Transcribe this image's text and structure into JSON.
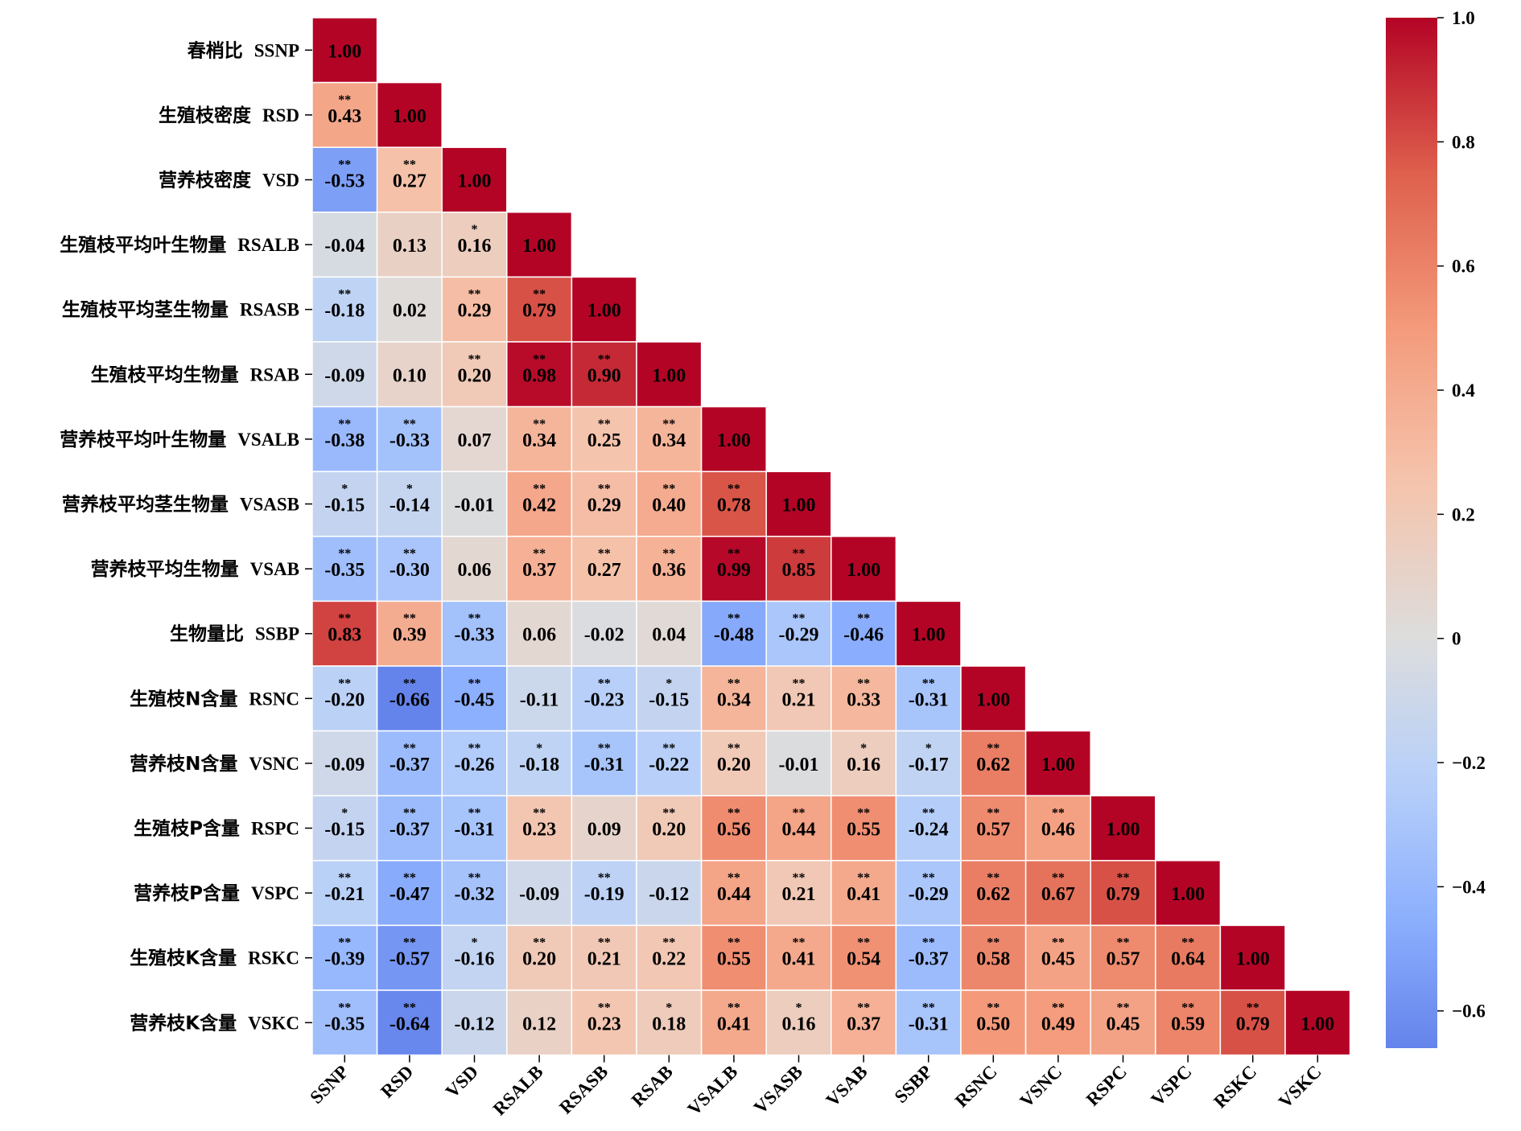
{
  "chart_data": {
    "type": "heatmap",
    "title": "",
    "variables": [
      "SSNP",
      "RSD",
      "VSD",
      "RSALB",
      "RSASB",
      "RSAB",
      "VSALB",
      "VSASB",
      "VSAB",
      "SSBP",
      "RSNC",
      "VSNC",
      "RSPC",
      "VSPC",
      "RSKC",
      "VSKC"
    ],
    "row_labels_cn": [
      "春梢比",
      "生殖枝密度",
      "营养枝密度",
      "生殖枝平均叶生物量",
      "生殖枝平均茎生物量",
      "生殖枝平均生物量",
      "营养枝平均叶生物量",
      "营养枝平均茎生物量",
      "营养枝平均生物量",
      "生物量比",
      "生殖枝N含量",
      "营养枝N含量",
      "生殖枝P含量",
      "营养枝P含量",
      "生殖枝K含量",
      "营养枝K含量"
    ],
    "values": [
      [
        1.0
      ],
      [
        0.43,
        1.0
      ],
      [
        -0.53,
        0.27,
        1.0
      ],
      [
        -0.04,
        0.13,
        0.16,
        1.0
      ],
      [
        -0.18,
        0.02,
        0.29,
        0.79,
        1.0
      ],
      [
        -0.09,
        0.1,
        0.2,
        0.98,
        0.9,
        1.0
      ],
      [
        -0.38,
        -0.33,
        0.07,
        0.34,
        0.25,
        0.34,
        1.0
      ],
      [
        -0.15,
        -0.14,
        -0.01,
        0.42,
        0.29,
        0.4,
        0.78,
        1.0
      ],
      [
        -0.35,
        -0.3,
        0.06,
        0.37,
        0.27,
        0.36,
        0.99,
        0.85,
        1.0
      ],
      [
        0.83,
        0.39,
        -0.33,
        0.06,
        -0.02,
        0.04,
        -0.48,
        -0.29,
        -0.46,
        1.0
      ],
      [
        -0.2,
        -0.66,
        -0.45,
        -0.11,
        -0.23,
        -0.15,
        0.34,
        0.21,
        0.33,
        -0.31,
        1.0
      ],
      [
        -0.09,
        -0.37,
        -0.26,
        -0.18,
        -0.31,
        -0.22,
        0.2,
        -0.01,
        0.16,
        -0.17,
        0.62,
        1.0
      ],
      [
        -0.15,
        -0.37,
        -0.31,
        0.23,
        0.09,
        0.2,
        0.56,
        0.44,
        0.55,
        -0.24,
        0.57,
        0.46,
        1.0
      ],
      [
        -0.21,
        -0.47,
        -0.32,
        -0.09,
        -0.19,
        -0.12,
        0.44,
        0.21,
        0.41,
        -0.29,
        0.62,
        0.67,
        0.79,
        1.0
      ],
      [
        -0.39,
        -0.57,
        -0.16,
        0.2,
        0.21,
        0.22,
        0.55,
        0.41,
        0.54,
        -0.37,
        0.58,
        0.45,
        0.57,
        0.64,
        1.0
      ],
      [
        -0.35,
        -0.64,
        -0.12,
        0.12,
        0.23,
        0.18,
        0.41,
        0.16,
        0.37,
        -0.31,
        0.5,
        0.49,
        0.45,
        0.59,
        0.79,
        1.0
      ]
    ],
    "significance": [
      [
        ""
      ],
      [
        "**",
        ""
      ],
      [
        "**",
        "**",
        ""
      ],
      [
        "",
        "",
        "*",
        ""
      ],
      [
        "**",
        "",
        "**",
        "**",
        ""
      ],
      [
        "",
        "",
        "**",
        "**",
        "**",
        ""
      ],
      [
        "**",
        "**",
        "",
        "**",
        "**",
        "**",
        ""
      ],
      [
        "*",
        "*",
        "",
        "**",
        "**",
        "**",
        "**",
        ""
      ],
      [
        "**",
        "**",
        "",
        "**",
        "**",
        "**",
        "**",
        "**",
        ""
      ],
      [
        "**",
        "**",
        "**",
        "",
        "",
        "",
        "**",
        "**",
        "**",
        ""
      ],
      [
        "**",
        "**",
        "**",
        "",
        "**",
        "*",
        "**",
        "**",
        "**",
        "**",
        ""
      ],
      [
        "",
        "**",
        "**",
        "*",
        "**",
        "**",
        "**",
        "",
        "*",
        "*",
        "**",
        ""
      ],
      [
        "*",
        "**",
        "**",
        "**",
        "",
        "**",
        "**",
        "**",
        "**",
        "**",
        "**",
        "**",
        ""
      ],
      [
        "**",
        "**",
        "**",
        "",
        "**",
        "",
        "**",
        "**",
        "**",
        "**",
        "**",
        "**",
        "**",
        ""
      ],
      [
        "**",
        "**",
        "*",
        "**",
        "**",
        "**",
        "**",
        "**",
        "**",
        "**",
        "**",
        "**",
        "**",
        "**",
        ""
      ],
      [
        "**",
        "**",
        "",
        "",
        "**",
        "*",
        "**",
        "*",
        "**",
        "**",
        "**",
        "**",
        "**",
        "**",
        "**",
        ""
      ]
    ],
    "colorbar": {
      "min": -0.66,
      "max": 1.0,
      "ticks": [
        1.0,
        0.8,
        0.6,
        0.4,
        0.2,
        0,
        -0.2,
        -0.4,
        -0.6
      ],
      "tick_labels": [
        "1.0",
        "0.8",
        "0.6",
        "0.4",
        "0.2",
        "0",
        "−0.2",
        "−0.4",
        "−0.6"
      ],
      "colormap": "coolwarm"
    },
    "xlabel": "",
    "ylabel": ""
  }
}
